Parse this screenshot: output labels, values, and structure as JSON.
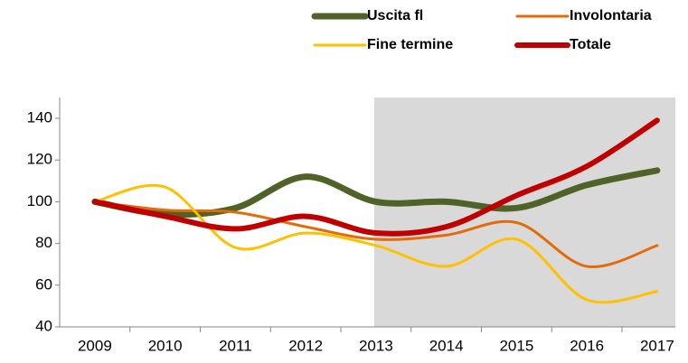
{
  "chart_data": {
    "type": "line",
    "categories": [
      "2009",
      "2010",
      "2011",
      "2012",
      "2013",
      "2014",
      "2015",
      "2016",
      "2017"
    ],
    "series": [
      {
        "name": "Uscita fl",
        "color": "#4f6228",
        "width": 7,
        "values": [
          100,
          94,
          97,
          112,
          100,
          100,
          97,
          108,
          115
        ]
      },
      {
        "name": "Involontaria",
        "color": "#e36c09",
        "width": 3,
        "values": [
          100,
          96,
          95,
          88,
          82,
          84,
          90,
          69,
          79
        ]
      },
      {
        "name": "Fine termine",
        "color": "#ffc000",
        "width": 3,
        "values": [
          100,
          107,
          78,
          85,
          79,
          69,
          82,
          53,
          57
        ]
      },
      {
        "name": "Totale",
        "color": "#c00000",
        "width": 6,
        "values": [
          100,
          93,
          87,
          93,
          85,
          88,
          103,
          117,
          139
        ]
      }
    ],
    "ylim": [
      40,
      140
    ],
    "yticks": [
      40,
      60,
      80,
      100,
      120,
      140
    ],
    "shaded": [
      "2013",
      "2017"
    ],
    "smooth": true,
    "grid": false
  }
}
